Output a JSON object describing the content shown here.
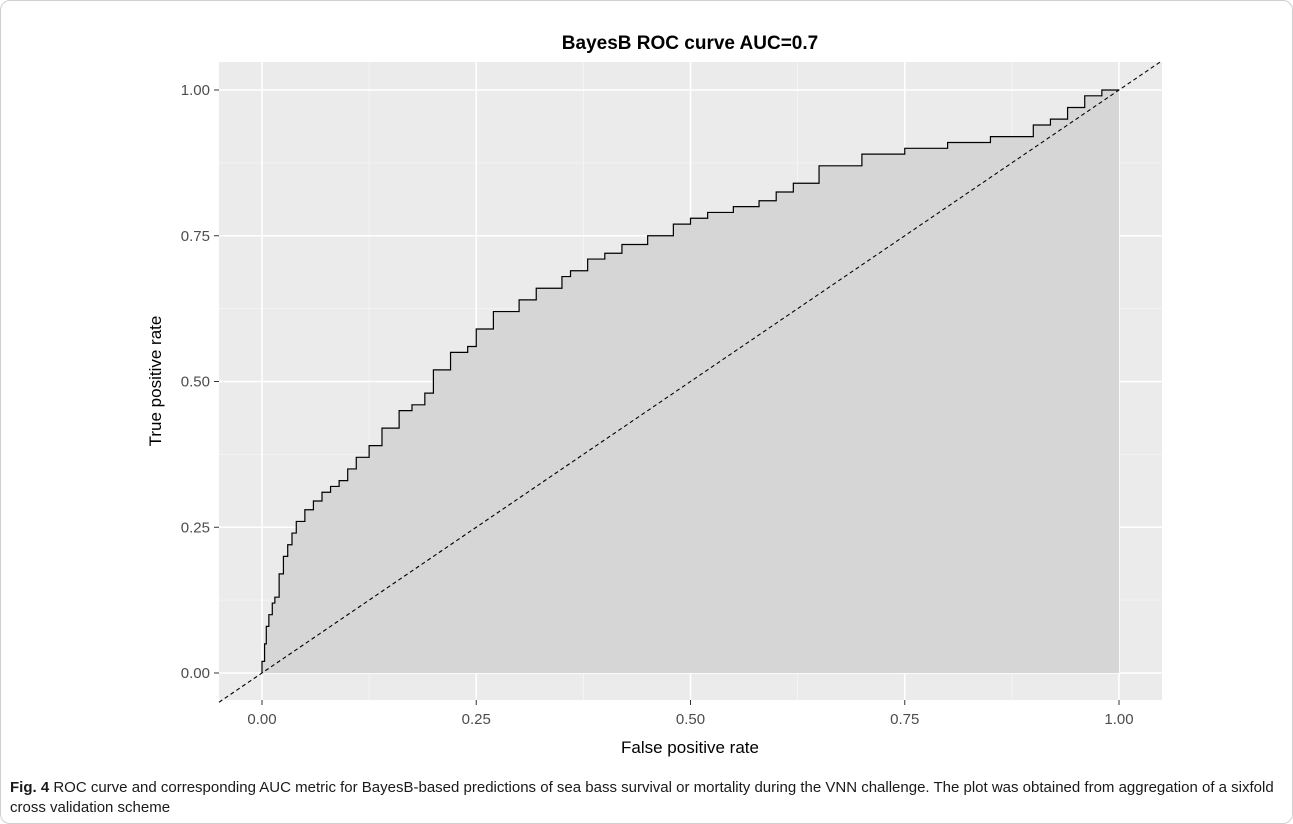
{
  "chart_data": {
    "type": "area",
    "title": "BayesB ROC curve  AUC=0.7",
    "xlabel": "False positive rate",
    "ylabel": "True positive rate",
    "xlim": [
      0,
      1
    ],
    "ylim": [
      0,
      1
    ],
    "x_ticks": [
      "0.00",
      "0.25",
      "0.50",
      "0.75",
      "1.00"
    ],
    "y_ticks": [
      "0.00",
      "0.25",
      "0.50",
      "0.75",
      "1.00"
    ],
    "grid": true,
    "series": [
      {
        "x": [
          0,
          0.003,
          0.005,
          0.008,
          0.012,
          0.015,
          0.02,
          0.025,
          0.03,
          0.035,
          0.04,
          0.05,
          0.06,
          0.07,
          0.08,
          0.09,
          0.1,
          0.11,
          0.125,
          0.14,
          0.16,
          0.175,
          0.19,
          0.2,
          0.22,
          0.24,
          0.25,
          0.27,
          0.3,
          0.32,
          0.35,
          0.36,
          0.38,
          0.4,
          0.42,
          0.45,
          0.48,
          0.5,
          0.52,
          0.55,
          0.58,
          0.6,
          0.62,
          0.65,
          0.7,
          0.75,
          0.78,
          0.8,
          0.85,
          0.88,
          0.9,
          0.92,
          0.94,
          0.96,
          0.98,
          1.0
        ],
        "y": [
          0,
          0.02,
          0.05,
          0.08,
          0.1,
          0.12,
          0.13,
          0.17,
          0.2,
          0.22,
          0.24,
          0.26,
          0.28,
          0.295,
          0.31,
          0.32,
          0.33,
          0.35,
          0.37,
          0.39,
          0.42,
          0.45,
          0.46,
          0.48,
          0.52,
          0.55,
          0.56,
          0.59,
          0.62,
          0.64,
          0.66,
          0.68,
          0.69,
          0.71,
          0.72,
          0.735,
          0.75,
          0.77,
          0.78,
          0.79,
          0.8,
          0.81,
          0.825,
          0.84,
          0.87,
          0.89,
          0.9,
          0.9,
          0.91,
          0.92,
          0.92,
          0.94,
          0.95,
          0.97,
          0.99,
          1.0
        ]
      }
    ],
    "reference_line": {
      "style": "dashed",
      "from": [
        0,
        0
      ],
      "to": [
        1,
        1
      ]
    }
  },
  "caption": {
    "label": "Fig. 4",
    "text": "ROC curve and corresponding AUC metric for BayesB-based predictions of sea bass survival or mortality during the VNN challenge. The plot was obtained from aggregation of a sixfold cross validation scheme"
  },
  "colors": {
    "panel_bg": "#ebebeb",
    "grid": "#ffffff",
    "fill": "#d6d6d6",
    "line": "#000000"
  }
}
